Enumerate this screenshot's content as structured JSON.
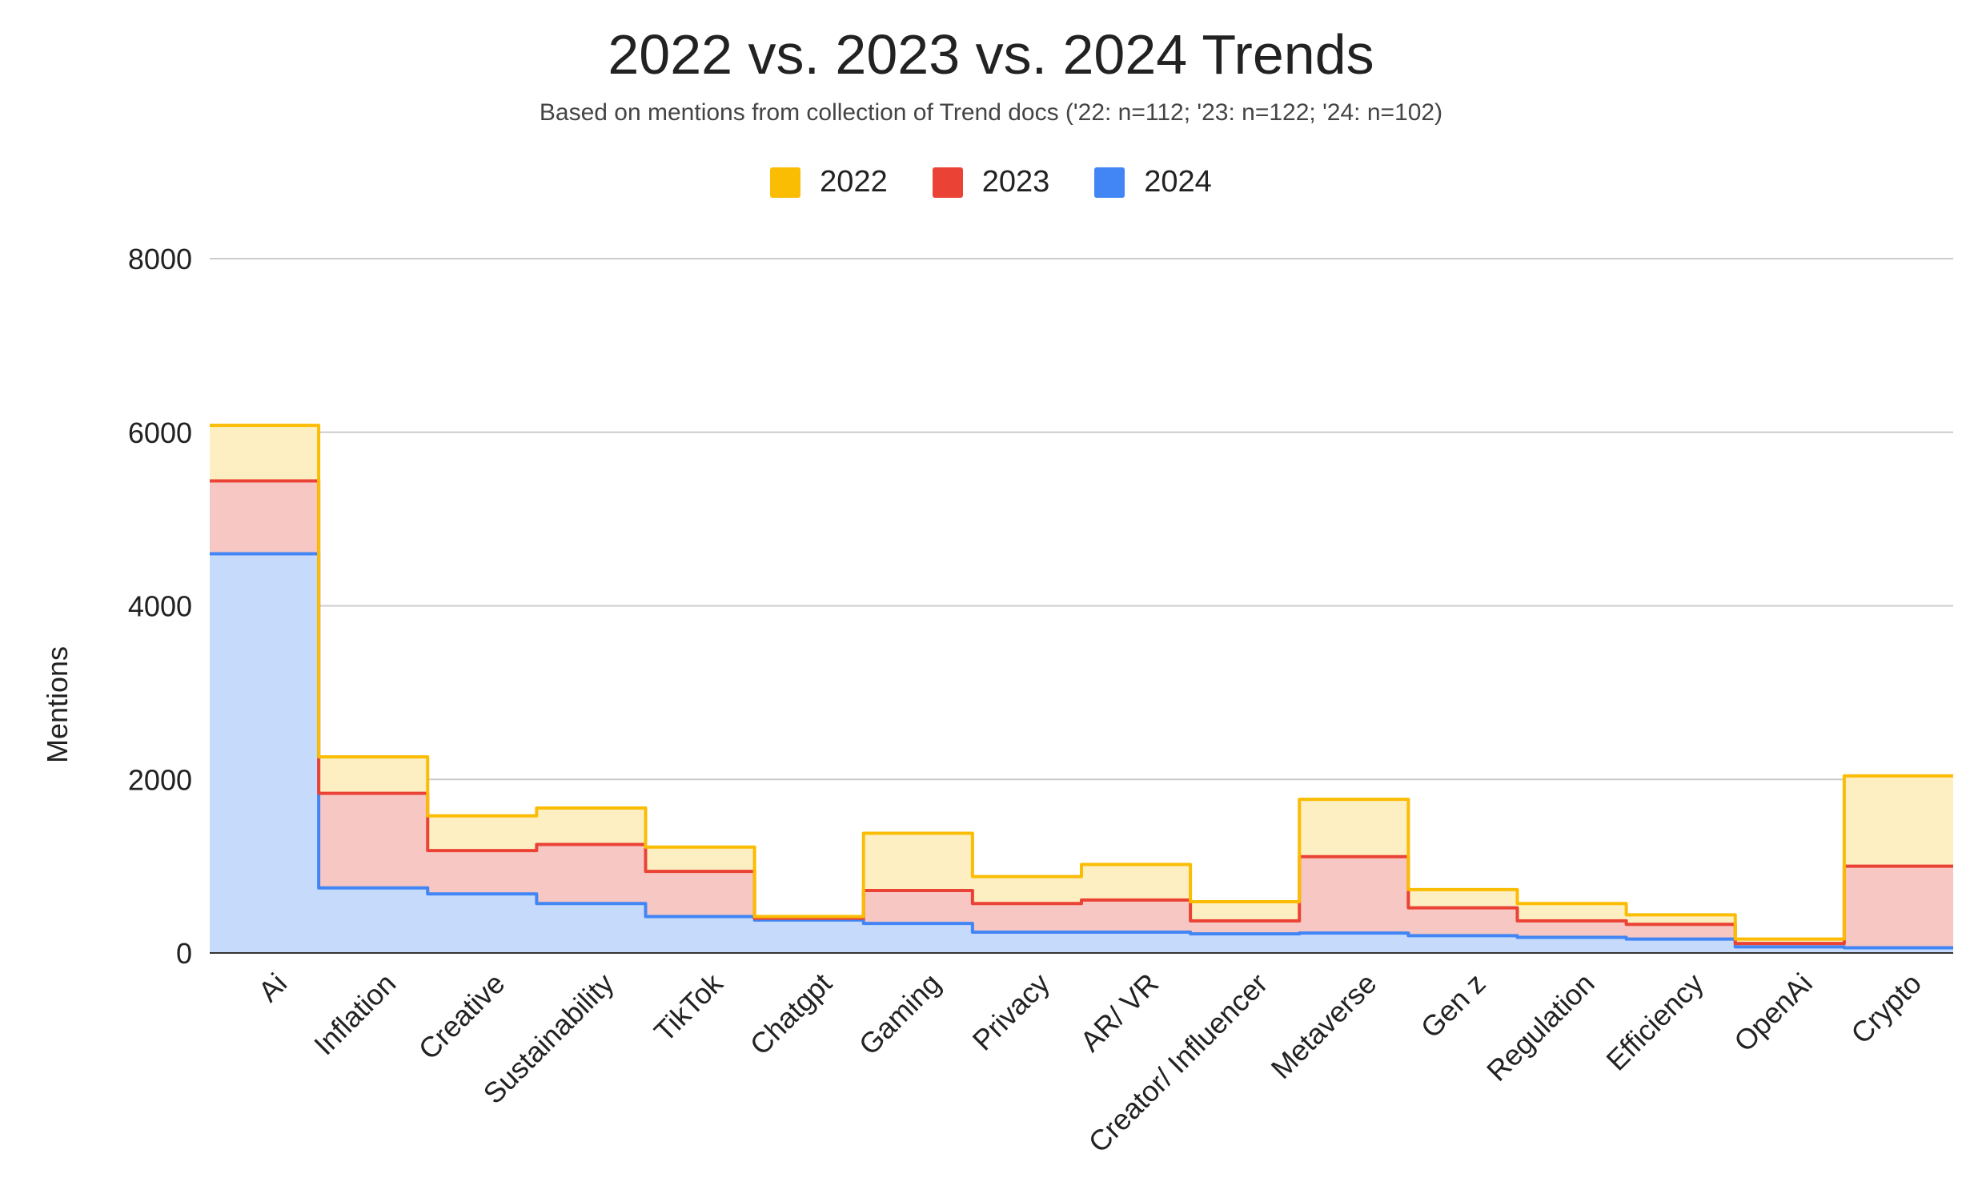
{
  "chart_data": {
    "type": "area",
    "title": "2022 vs. 2023 vs. 2024 Trends",
    "subtitle": "Based on mentions from collection of Trend docs ('22: n=112; '23: n=122; '24: n=102)",
    "ylabel": "Mentions",
    "xlabel": "",
    "stacked": true,
    "stepped": true,
    "ylim": [
      0,
      8000
    ],
    "yticks": [
      0,
      2000,
      4000,
      6000,
      8000
    ],
    "grid": true,
    "legend_position": "top",
    "categories": [
      "Ai",
      "Inflation",
      "Creative",
      "Sustainability",
      "TikTok",
      "Chatgpt",
      "Gaming",
      "Privacy",
      "AR/ VR",
      "Creator/ Influencer",
      "Metaverse",
      "Gen z",
      "Regulation",
      "Efficiency",
      "OpenAi",
      "Crypto"
    ],
    "series": [
      {
        "name": "2024",
        "color": "#4285F4",
        "values": [
          4600,
          750,
          680,
          570,
          420,
          380,
          340,
          240,
          240,
          220,
          230,
          200,
          180,
          160,
          70,
          60
        ]
      },
      {
        "name": "2023",
        "color": "#EA4335",
        "values": [
          840,
          1090,
          500,
          680,
          520,
          20,
          380,
          330,
          370,
          150,
          880,
          320,
          190,
          170,
          40,
          940
        ]
      },
      {
        "name": "2022",
        "color": "#FBBC04",
        "values": [
          640,
          420,
          400,
          420,
          280,
          20,
          660,
          310,
          410,
          220,
          660,
          210,
          200,
          110,
          50,
          1040
        ]
      }
    ]
  }
}
